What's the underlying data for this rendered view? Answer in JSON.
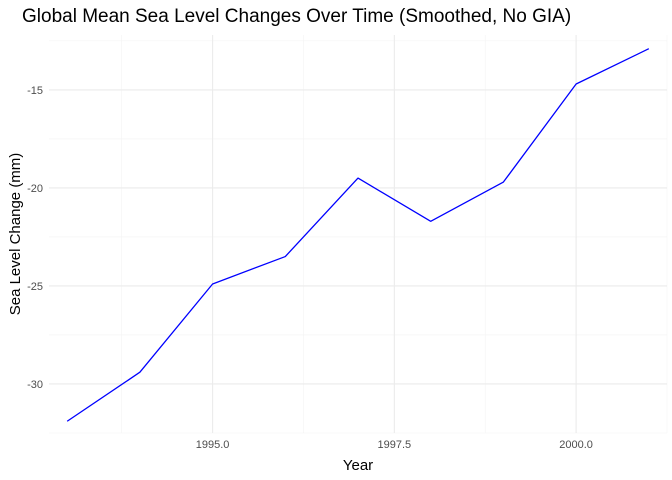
{
  "chart_data": {
    "type": "line",
    "title": "Global Mean Sea Level Changes Over Time (Smoothed, No GIA)",
    "xlabel": "Year",
    "ylabel": "Sea Level Change (mm)",
    "xlim": [
      1992.75,
      2001.25
    ],
    "ylim": [
      -32.5,
      -12.2
    ],
    "x_ticks": [
      1995.0,
      1997.5,
      2000.0
    ],
    "x_tick_labels": [
      "1995.0",
      "1997.5",
      "2000.0"
    ],
    "y_ticks": [
      -30,
      -25,
      -20,
      -15
    ],
    "y_tick_labels": [
      "-30",
      "-25",
      "-20",
      "-15"
    ],
    "grid": true,
    "legend": "none",
    "series": [
      {
        "color": "#0000ff",
        "x": [
          1993,
          1994,
          1995,
          1996,
          1997,
          1998,
          1999,
          2000,
          2001
        ],
        "y": [
          -31.9,
          -29.4,
          -24.9,
          -23.5,
          -19.5,
          -21.7,
          -19.7,
          -14.7,
          -12.9
        ]
      }
    ]
  }
}
